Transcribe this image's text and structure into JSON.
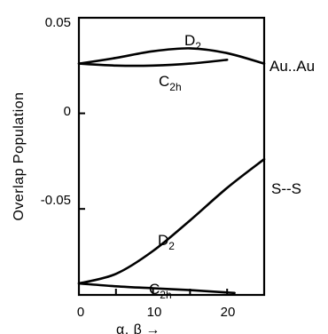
{
  "chart_data": {
    "type": "line",
    "title": "",
    "xlabel": "α, β",
    "xlabel_arrow": "→",
    "ylabel": "Overlap  Population",
    "xlim": [
      0,
      25
    ],
    "ylim": [
      -0.095,
      0.05
    ],
    "x_ticks": [
      0,
      10,
      20
    ],
    "x_tick_labels": [
      "0",
      "10",
      "20"
    ],
    "y_ticks": [
      0.05,
      0,
      -0.05
    ],
    "y_tick_labels": [
      "0.05",
      "0",
      "-0.05"
    ],
    "grid": false,
    "groups": [
      {
        "name": "Au..Au",
        "series": [
          {
            "name": "D2",
            "label_main": "D",
            "label_sub": "2",
            "x": [
              0,
              5,
              10,
              15,
              20,
              25
            ],
            "y": [
              0.026,
              0.029,
              0.0325,
              0.034,
              0.0315,
              0.026
            ]
          },
          {
            "name": "C2h",
            "label_main": "C",
            "label_sub": "2h",
            "x": [
              0,
              5,
              10,
              15,
              20
            ],
            "y": [
              0.026,
              0.025,
              0.025,
              0.026,
              0.028
            ]
          }
        ]
      },
      {
        "name": "S--S",
        "series": [
          {
            "name": "D2",
            "label_main": "D",
            "label_sub": "2",
            "x": [
              0,
              5,
              10,
              15,
              20,
              25
            ],
            "y": [
              -0.089,
              -0.084,
              -0.072,
              -0.056,
              -0.039,
              -0.024
            ]
          },
          {
            "name": "C2h",
            "label_main": "C",
            "label_sub": "2h",
            "x": [
              0,
              5,
              10,
              15,
              21
            ],
            "y": [
              -0.089,
              -0.0905,
              -0.0915,
              -0.0925,
              -0.094
            ]
          }
        ]
      }
    ]
  }
}
